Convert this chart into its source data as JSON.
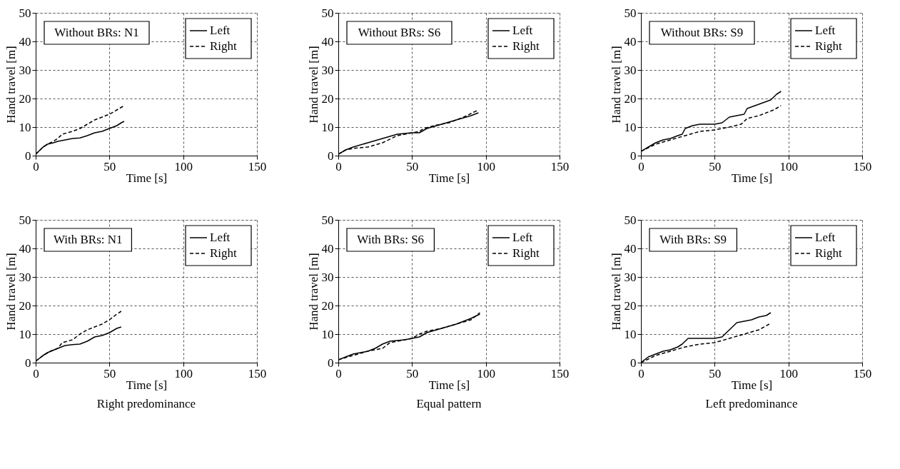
{
  "chart_data": [
    {
      "type": "line",
      "title": "Without BRs: N1",
      "xlabel": "Time [s]",
      "ylabel": "Hand travel [m]",
      "xlim": [
        0,
        150
      ],
      "ylim": [
        0,
        50
      ],
      "xticks": [
        0,
        50,
        100,
        150
      ],
      "yticks": [
        0,
        10,
        20,
        30,
        40,
        50
      ],
      "grid": true,
      "legend": "top right",
      "series": [
        {
          "name": "Left",
          "color": "#000000",
          "line_style": "solid",
          "x": [
            0,
            2,
            5,
            8,
            12,
            15,
            20,
            25,
            30,
            35,
            40,
            45,
            50,
            55,
            58,
            60
          ],
          "values": [
            0.5,
            1.5,
            3,
            4,
            4.5,
            5,
            5.5,
            6,
            6.2,
            7,
            8,
            8.5,
            9.5,
            10.5,
            11.5,
            12
          ]
        },
        {
          "name": "Right",
          "color": "#000000",
          "line_style": "dashed",
          "x": [
            0,
            5,
            8,
            12,
            15,
            18,
            25,
            30,
            35,
            40,
            45,
            50,
            55,
            60
          ],
          "values": [
            0.5,
            3,
            4,
            5,
            6,
            7.5,
            8.5,
            9.5,
            11,
            12.5,
            13.5,
            14.5,
            16,
            17.5
          ]
        }
      ]
    },
    {
      "type": "line",
      "title": "Without BRs: S6",
      "xlabel": "Time [s]",
      "ylabel": "Hand travel [m]",
      "xlim": [
        0,
        150
      ],
      "ylim": [
        0,
        50
      ],
      "xticks": [
        0,
        50,
        100,
        150
      ],
      "yticks": [
        0,
        10,
        20,
        30,
        40,
        50
      ],
      "grid": true,
      "legend": "top right",
      "series": [
        {
          "name": "Left",
          "color": "#000000",
          "line_style": "solid",
          "x": [
            0,
            5,
            10,
            20,
            30,
            40,
            50,
            55,
            60,
            70,
            80,
            90,
            95
          ],
          "values": [
            0.5,
            2,
            3,
            4.5,
            6,
            7.5,
            8,
            8,
            9.5,
            11,
            12.5,
            14,
            15
          ]
        },
        {
          "name": "Right",
          "color": "#000000",
          "line_style": "dashed",
          "x": [
            0,
            5,
            10,
            20,
            30,
            40,
            50,
            55,
            58,
            65,
            75,
            85,
            95
          ],
          "values": [
            0.5,
            2,
            2.5,
            3,
            4.5,
            7,
            8,
            8.5,
            9.5,
            10.5,
            11.5,
            13.5,
            16
          ]
        }
      ]
    },
    {
      "type": "line",
      "title": "Without BRs: S9",
      "xlabel": "Time [s]",
      "ylabel": "Hand travel [m]",
      "xlim": [
        0,
        150
      ],
      "ylim": [
        0,
        50
      ],
      "xticks": [
        0,
        50,
        100,
        150
      ],
      "yticks": [
        0,
        10,
        20,
        30,
        40,
        50
      ],
      "grid": true,
      "legend": "top right",
      "series": [
        {
          "name": "Left",
          "color": "#000000",
          "line_style": "solid",
          "x": [
            0,
            5,
            10,
            15,
            20,
            25,
            28,
            30,
            35,
            40,
            50,
            55,
            60,
            65,
            70,
            72,
            80,
            88,
            92,
            95
          ],
          "values": [
            1.5,
            3,
            4.5,
            5.5,
            6,
            7,
            7.5,
            9.5,
            10.5,
            11,
            11,
            11.5,
            13.5,
            14,
            14.5,
            16.5,
            18,
            19.5,
            21.5,
            22.5
          ]
        },
        {
          "name": "Right",
          "color": "#000000",
          "line_style": "dashed",
          "x": [
            0,
            10,
            20,
            30,
            40,
            50,
            60,
            68,
            72,
            80,
            90,
            95
          ],
          "values": [
            1.5,
            4,
            5.5,
            7,
            8.5,
            9,
            10,
            11,
            13,
            14,
            16,
            17.5
          ]
        }
      ]
    },
    {
      "type": "line",
      "title": "With BRs: N1",
      "xlabel": "Time [s]",
      "ylabel": "Hand travel [m]",
      "xlim": [
        0,
        150
      ],
      "ylim": [
        0,
        50
      ],
      "xticks": [
        0,
        50,
        100,
        150
      ],
      "yticks": [
        0,
        10,
        20,
        30,
        40,
        50
      ],
      "grid": true,
      "legend": "top right",
      "annotations": [
        "Right predominance"
      ],
      "series": [
        {
          "name": "Left",
          "color": "#000000",
          "line_style": "solid",
          "x": [
            0,
            5,
            8,
            15,
            20,
            25,
            30,
            35,
            40,
            45,
            50,
            55,
            58
          ],
          "values": [
            0.5,
            2.5,
            3.5,
            5,
            6,
            6.3,
            6.5,
            7.5,
            9,
            9.5,
            10.5,
            12,
            12.5
          ]
        },
        {
          "name": "Right",
          "color": "#000000",
          "line_style": "dashed",
          "x": [
            0,
            5,
            10,
            15,
            18,
            25,
            30,
            35,
            40,
            45,
            50,
            55,
            58
          ],
          "values": [
            0.5,
            2.5,
            4,
            5,
            7,
            8,
            10,
            11.5,
            12.5,
            13.5,
            15,
            17,
            18
          ]
        }
      ]
    },
    {
      "type": "line",
      "title": "With BRs: S6",
      "xlabel": "Time [s]",
      "ylabel": "Hand travel [m]",
      "xlim": [
        0,
        150
      ],
      "ylim": [
        0,
        50
      ],
      "xticks": [
        0,
        50,
        100,
        150
      ],
      "yticks": [
        0,
        10,
        20,
        30,
        40,
        50
      ],
      "grid": true,
      "legend": "top right",
      "annotations": [
        "Equal pattern"
      ],
      "series": [
        {
          "name": "Left",
          "color": "#000000",
          "line_style": "solid",
          "x": [
            0,
            5,
            10,
            20,
            25,
            30,
            35,
            45,
            50,
            55,
            60,
            70,
            80,
            90,
            96
          ],
          "values": [
            1,
            2,
            3,
            4,
            5,
            6.5,
            7.5,
            8,
            8.5,
            9,
            10.5,
            12,
            13.5,
            15.5,
            17
          ]
        },
        {
          "name": "Right",
          "color": "#000000",
          "line_style": "dashed",
          "x": [
            0,
            10,
            20,
            25,
            30,
            35,
            45,
            50,
            55,
            60,
            70,
            80,
            90,
            96
          ],
          "values": [
            1,
            2.5,
            4,
            4.5,
            5,
            7,
            8,
            8.5,
            10,
            11,
            12,
            13.5,
            15,
            17.5
          ]
        }
      ]
    },
    {
      "type": "line",
      "title": "With BRs: S9",
      "xlabel": "Time [s]",
      "ylabel": "Hand travel [m]",
      "xlim": [
        0,
        150
      ],
      "ylim": [
        0,
        50
      ],
      "xticks": [
        0,
        50,
        100,
        150
      ],
      "yticks": [
        0,
        10,
        20,
        30,
        40,
        50
      ],
      "grid": true,
      "legend": "top right",
      "annotations": [
        "Left predominance"
      ],
      "series": [
        {
          "name": "Left",
          "color": "#000000",
          "line_style": "solid",
          "x": [
            0,
            5,
            10,
            15,
            20,
            25,
            28,
            32,
            40,
            50,
            55,
            60,
            65,
            70,
            75,
            80,
            85,
            88
          ],
          "values": [
            0,
            2,
            3,
            4,
            4.5,
            5.5,
            6.5,
            8.5,
            8.5,
            8.5,
            9,
            11.5,
            14,
            14.5,
            15,
            16,
            16.5,
            17.5
          ]
        },
        {
          "name": "Right",
          "color": "#000000",
          "line_style": "dashed",
          "x": [
            0,
            10,
            20,
            30,
            40,
            50,
            60,
            70,
            80,
            87
          ],
          "values": [
            0,
            2.5,
            4,
            5.5,
            6.5,
            7,
            8.5,
            10,
            11.5,
            13.5
          ]
        }
      ]
    }
  ]
}
